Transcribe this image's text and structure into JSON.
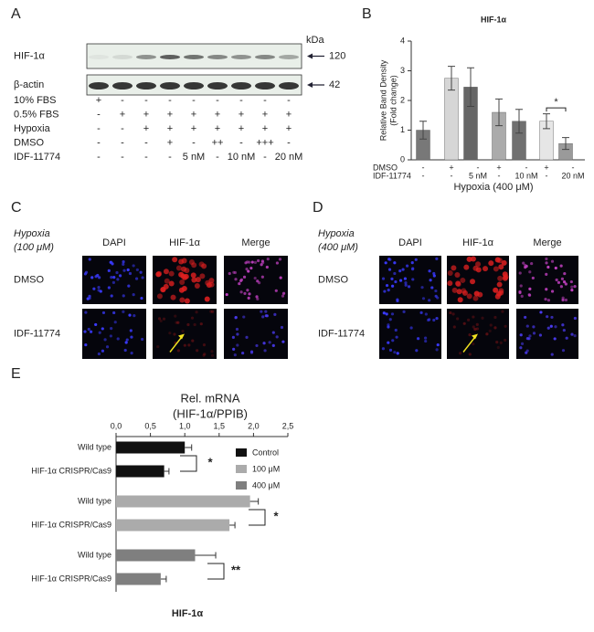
{
  "panel_labels": [
    "A",
    "B",
    "C",
    "D",
    "E"
  ],
  "blot": {
    "bands": [
      "HIF-1α",
      "β-actin"
    ],
    "kda_label": "kDa",
    "kda": [
      "120",
      "42"
    ],
    "conditions": [
      {
        "label": "10% FBS",
        "marks": [
          "+",
          "-",
          "-",
          "-",
          "-",
          "-",
          "-",
          "-",
          "-"
        ]
      },
      {
        "label": "0.5% FBS",
        "marks": [
          "-",
          "+",
          "+",
          "+",
          "+",
          "+",
          "+",
          "+",
          "+"
        ]
      },
      {
        "label": "Hypoxia",
        "marks": [
          "-",
          "-",
          "+",
          "+",
          "+",
          "+",
          "+",
          "+",
          "+"
        ]
      },
      {
        "label": "DMSO",
        "marks": [
          "-",
          "-",
          "-",
          "+",
          "-",
          "++",
          "-",
          "+++",
          "-"
        ]
      },
      {
        "label": "IDF-11774",
        "marks": [
          "-",
          "-",
          "-",
          "-",
          "5 nM",
          "-",
          "10 nM",
          "-",
          "20 nM"
        ]
      }
    ]
  },
  "microscopy": [
    {
      "title": [
        "Hypoxia",
        "(100 μM)"
      ],
      "columns": [
        "DAPI",
        "HIF-1α",
        "Merge"
      ],
      "rows": [
        "DMSO",
        "IDF-11774"
      ]
    },
    {
      "title": [
        "Hypoxia",
        "(400 μM)"
      ],
      "columns": [
        "DAPI",
        "HIF-1α",
        "Merge"
      ],
      "rows": [
        "DMSO",
        "IDF-11774"
      ]
    }
  ],
  "chart_data": [
    {
      "type": "bar",
      "title": "HIF-1α",
      "ylabel": [
        "Relative Band Density",
        "(Fold change)"
      ],
      "xlabel": "Hypoxia (400 μM)",
      "values": [
        1.0,
        2.75,
        2.45,
        1.6,
        1.3,
        1.3,
        0.55
      ],
      "errors": [
        0.3,
        0.4,
        0.65,
        0.45,
        0.4,
        0.25,
        0.2
      ],
      "colors": [
        "#787878",
        "#d6d6d6",
        "#666666",
        "#ababab",
        "#707070",
        "#e6e6e6",
        "#9a9a9a"
      ],
      "ylim": [
        0,
        4
      ],
      "yticks": [
        0,
        1,
        2,
        3,
        4
      ],
      "rows": [
        {
          "label": "DMSO",
          "marks": [
            "-",
            "+",
            "-",
            "+",
            "-",
            "+",
            "-"
          ]
        },
        {
          "label": "IDF-11774",
          "marks": [
            "-",
            "-",
            "5 nM",
            "-",
            "10 nM",
            "-",
            "20 nM"
          ]
        }
      ],
      "significance": "*"
    },
    {
      "type": "hbar",
      "title": [
        "Rel. mRNA",
        "(HIF-1α/PPIB)"
      ],
      "xlabel": "HIF-1α",
      "categories": [
        "Wild type",
        "HIF-1α CRISPR/Cas9"
      ],
      "series": [
        {
          "name": "Control",
          "color": "#111111",
          "values": [
            1.0,
            0.7
          ],
          "errors": [
            0.1,
            0.07
          ]
        },
        {
          "name": "100 μM",
          "color": "#ababab",
          "values": [
            1.95,
            1.65
          ],
          "errors": [
            0.12,
            0.08
          ]
        },
        {
          "name": "400 μM",
          "color": "#7f7f7f",
          "values": [
            1.15,
            0.65
          ],
          "errors": [
            0.3,
            0.08
          ]
        }
      ],
      "xlim": [
        0,
        2.5
      ],
      "xticks": [
        {
          "value": 0,
          "label": "0,0"
        },
        {
          "value": 0.5,
          "label": "0,5"
        },
        {
          "value": 1,
          "label": "1,0"
        },
        {
          "value": 1.5,
          "label": "1,5"
        },
        {
          "value": 2,
          "label": "2,0"
        },
        {
          "value": 2.5,
          "label": "2,5"
        }
      ],
      "significance": [
        "*",
        "*",
        "**"
      ],
      "legend": "upper right"
    }
  ]
}
